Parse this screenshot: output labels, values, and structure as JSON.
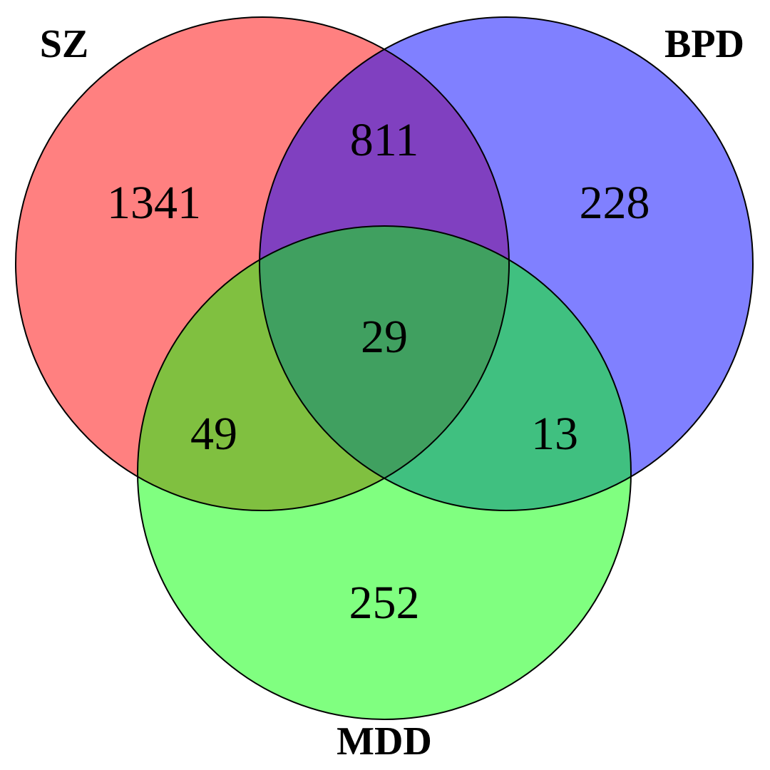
{
  "diagram": {
    "type": "venn",
    "sets": [
      {
        "key": "sz",
        "label": "SZ",
        "color": "#ff8080"
      },
      {
        "key": "bpd",
        "label": "BPD",
        "color": "#8080ff"
      },
      {
        "key": "mdd",
        "label": "MDD",
        "color": "#80ff80"
      }
    ],
    "regions": {
      "sz_only": "1341",
      "bpd_only": "228",
      "mdd_only": "252",
      "sz_bpd": "811",
      "sz_mdd": "49",
      "bpd_mdd": "13",
      "sz_bpd_mdd": "29"
    },
    "region_colors": {
      "sz_bpd": "#8040c0",
      "sz_mdd": "#80c040",
      "bpd_mdd": "#40c080",
      "sz_bpd_mdd": "#40a060"
    }
  }
}
